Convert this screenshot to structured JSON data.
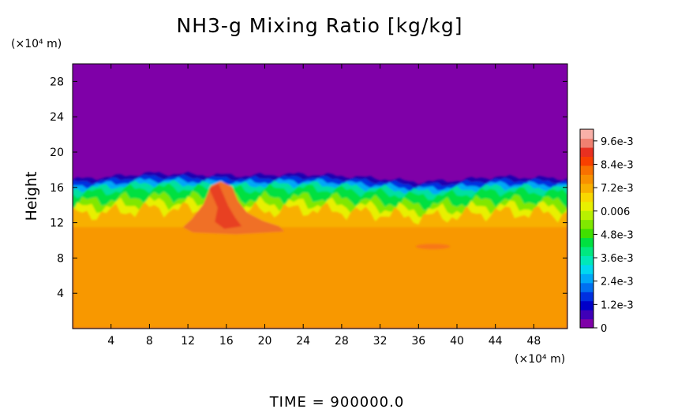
{
  "chart_data": {
    "type": "heatmap",
    "title": "NH3-g Mixing Ratio [kg/kg]",
    "xlabel": "",
    "x_unit": "(×10⁴ m)",
    "ylabel": "Height",
    "y_unit": "(×10⁴ m)",
    "xlim": [
      0,
      51.5
    ],
    "ylim": [
      0,
      30
    ],
    "x_ticks": [
      4,
      8,
      12,
      16,
      20,
      24,
      28,
      32,
      36,
      40,
      44,
      48
    ],
    "y_ticks": [
      4,
      8,
      12,
      16,
      20,
      24,
      28
    ],
    "colorbar": {
      "range": [
        0,
        0.0102
      ],
      "tick_values": [
        0,
        0.0012,
        0.0024,
        0.0036,
        0.0048,
        0.006,
        0.0072,
        0.0084,
        0.0096
      ],
      "tick_labels": [
        "0",
        "1.2e-3",
        "2.4e-3",
        "3.6e-3",
        "4.8e-3",
        "0.006",
        "7.2e-3",
        "8.4e-3",
        "9.6e-3"
      ],
      "colors": [
        "#7f00a8",
        "#3f00b8",
        "#0000c8",
        "#0030e0",
        "#0070f0",
        "#00a8f8",
        "#00d8f0",
        "#00e8b8",
        "#00e880",
        "#00e040",
        "#40e000",
        "#80e800",
        "#b8f000",
        "#e8f000",
        "#f8d800",
        "#f8b000",
        "#f89000",
        "#f87000",
        "#f84000",
        "#e83020",
        "#f08070",
        "#f8b0a8"
      ]
    },
    "description_fields": {
      "background_value": 0.0,
      "lower_layer_value": 0.0088,
      "lower_layer_top_height": 11.5,
      "upper_edge_height": 16.5
    },
    "profile_x": [
      0,
      4,
      8,
      12,
      14,
      16,
      18,
      20,
      24,
      28,
      32,
      36,
      40,
      44,
      48,
      51.5
    ],
    "profile_top": [
      16.9,
      17.2,
      17.6,
      17.5,
      17.4,
      17.4,
      17.3,
      17.4,
      17.5,
      17.3,
      17.0,
      16.6,
      16.8,
      17.2,
      17.1,
      17.0
    ],
    "plume": {
      "x_center": 16,
      "height_range": [
        11.5,
        16.5
      ],
      "peak_value": 0.0093
    }
  },
  "footer": {
    "time_label": "TIME = 900000.0"
  }
}
